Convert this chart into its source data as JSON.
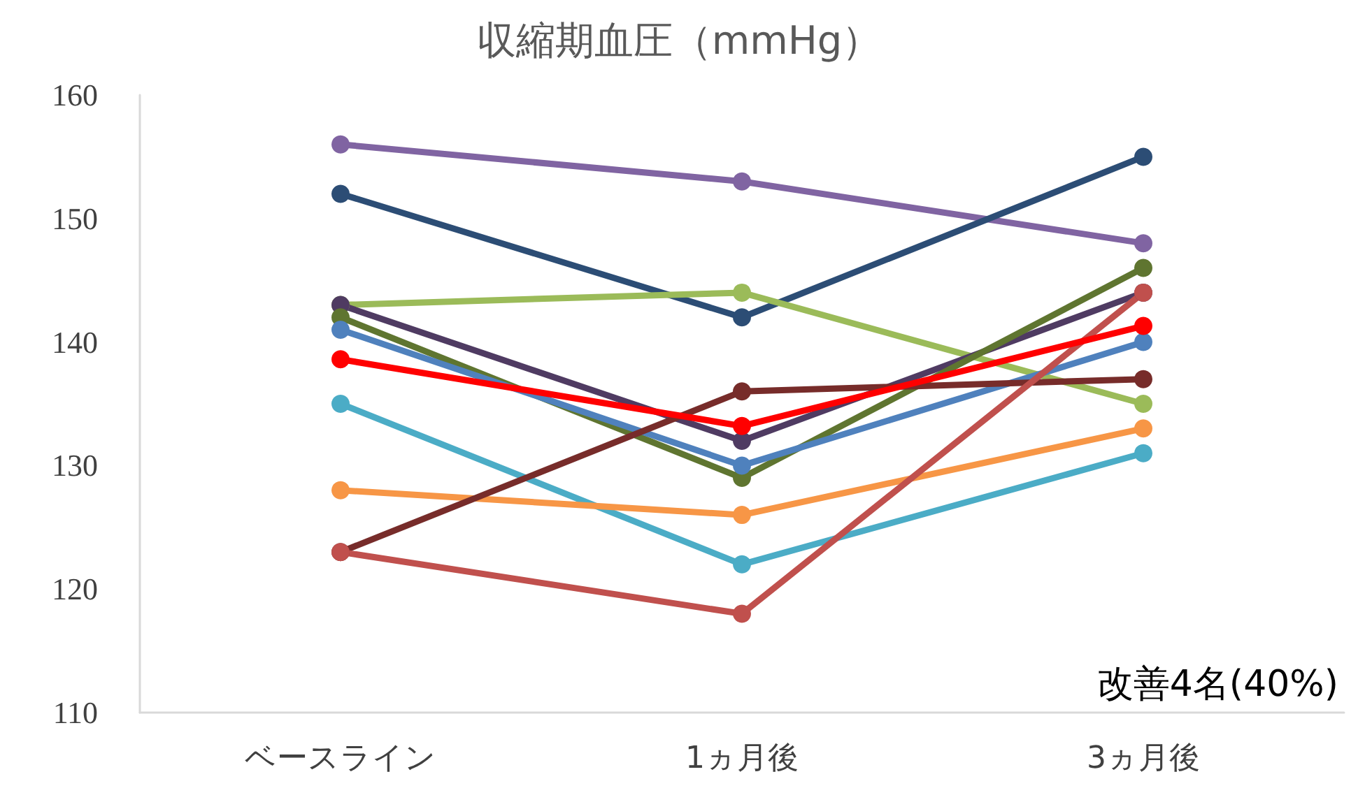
{
  "chart_data": {
    "type": "line",
    "title": "収縮期血圧（mmHg）",
    "categories": [
      "ベースライン",
      "1ヵ月後",
      "3ヵ月後"
    ],
    "series": [
      {
        "color": "#8064a2",
        "values": [
          156,
          153,
          148
        ]
      },
      {
        "color": "#2c4d75",
        "values": [
          152,
          142,
          155
        ]
      },
      {
        "color": "#9bbb59",
        "values": [
          143,
          144,
          135
        ]
      },
      {
        "color": "#4f3b62",
        "values": [
          143,
          132,
          144
        ]
      },
      {
        "color": "#5f7530",
        "values": [
          142,
          129,
          146
        ]
      },
      {
        "color": "#4f81bd",
        "values": [
          141,
          130,
          140
        ]
      },
      {
        "color": "#4bacc6",
        "values": [
          135,
          122,
          131
        ]
      },
      {
        "color": "#f79646",
        "values": [
          128,
          126,
          133
        ]
      },
      {
        "color": "#772c2a",
        "values": [
          123,
          136,
          137
        ]
      },
      {
        "color": "#c0504d",
        "values": [
          123,
          118,
          144
        ]
      },
      {
        "color": "#ff0000",
        "values": [
          138.6,
          133.2,
          141.3
        ]
      }
    ],
    "ylim": [
      110,
      160
    ],
    "yticks": [
      110,
      120,
      130,
      140,
      150,
      160
    ],
    "grid": false,
    "marker": "circle",
    "line_style": "solid",
    "annotations": [
      "改善4名(40%)"
    ]
  }
}
